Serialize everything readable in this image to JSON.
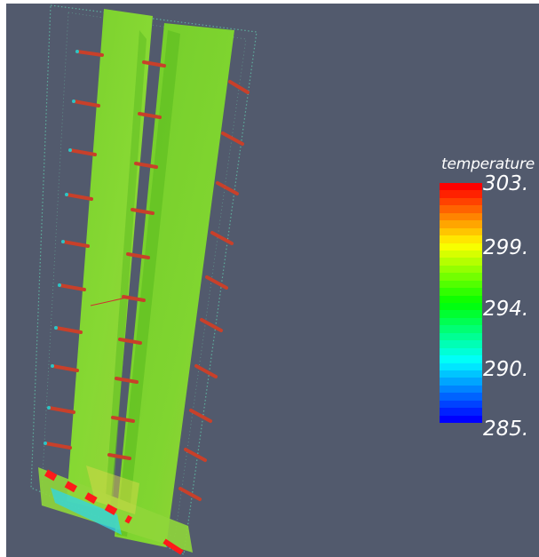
{
  "legend": {
    "title": "temperature",
    "ticks": [
      "303.",
      "299.",
      "294.",
      "290.",
      "285."
    ],
    "range": [
      285,
      303
    ]
  },
  "colors": {
    "background": "#525a6d",
    "plate_green": "#7bd12d",
    "fin_red": "#c8402a",
    "accent_red": "#ff1a1a",
    "accent_cyan": "#00e8f0"
  }
}
